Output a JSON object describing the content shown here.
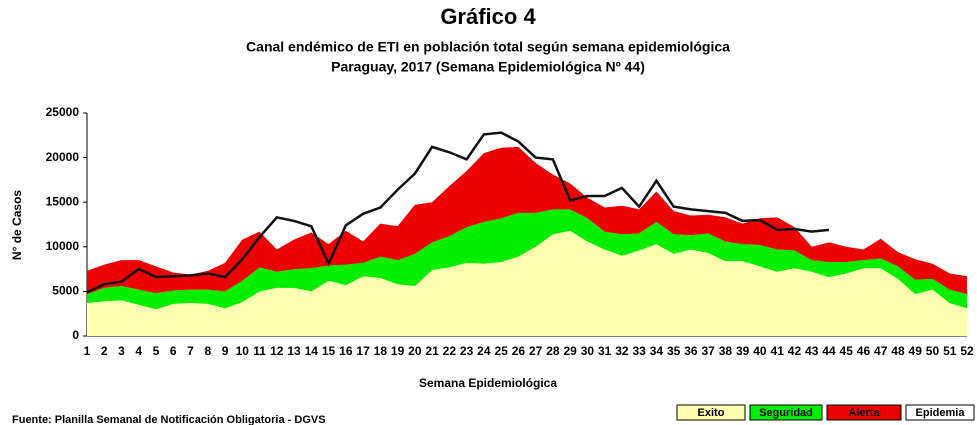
{
  "chart_data": {
    "type": "stacked-area",
    "title": "Gráfico 4",
    "subtitle": [
      "Canal endémico de ETI en población total según semana epidemiológica",
      "Paraguay, 2017 (Semana Epidemiológica Nº 44)"
    ],
    "x_label": "Semana Epidemiológica",
    "y_label": "N° de Casos",
    "source": "Fuente: Planilla Semanal de Notificación Obligatoria - DGVS",
    "categories": [
      1,
      2,
      3,
      4,
      5,
      6,
      7,
      8,
      9,
      10,
      11,
      12,
      13,
      14,
      15,
      16,
      17,
      18,
      19,
      20,
      21,
      22,
      23,
      24,
      25,
      26,
      27,
      28,
      29,
      30,
      31,
      32,
      33,
      34,
      35,
      36,
      37,
      38,
      39,
      40,
      41,
      42,
      43,
      44,
      45,
      46,
      47,
      48,
      49,
      50,
      51,
      52
    ],
    "ylim": [
      0,
      25000
    ],
    "yticks": [
      0,
      5000,
      10000,
      15000,
      20000,
      25000
    ],
    "grid": false,
    "series": [
      {
        "name": "Exito",
        "color": "#ffffb0",
        "values": [
          3700,
          3900,
          4000,
          3500,
          3000,
          3600,
          3700,
          3600,
          3100,
          3800,
          5000,
          5400,
          5400,
          5000,
          6200,
          5700,
          6700,
          6500,
          5800,
          5600,
          7400,
          7700,
          8200,
          8100,
          8300,
          8900,
          10000,
          11400,
          11800,
          10600,
          9700,
          9000,
          9600,
          10300,
          9200,
          9700,
          9300,
          8400,
          8400,
          7800,
          7200,
          7600,
          7200,
          6600,
          7000,
          7600,
          7600,
          6400,
          4700,
          5200,
          3700,
          3100
        ]
      },
      {
        "name": "Seguridad",
        "color": "#00ee00",
        "values": [
          1000,
          1500,
          1600,
          1700,
          1800,
          1500,
          1500,
          1600,
          1900,
          2400,
          2700,
          1800,
          2100,
          2600,
          1700,
          2300,
          1500,
          2400,
          2700,
          3600,
          3100,
          3500,
          4000,
          4700,
          4900,
          4900,
          3800,
          2800,
          2400,
          2600,
          2000,
          2400,
          1900,
          2500,
          2200,
          1600,
          2200,
          2200,
          1900,
          2400,
          2500,
          2000,
          1300,
          1700,
          1300,
          900,
          1100,
          1400,
          1600,
          1200,
          1500,
          1600
        ]
      },
      {
        "name": "Alerta",
        "color": "#ee0000",
        "values": [
          2600,
          2600,
          2900,
          3300,
          3000,
          2000,
          1700,
          2100,
          3200,
          4600,
          4000,
          2500,
          3300,
          4000,
          2400,
          3800,
          2400,
          3700,
          3800,
          5500,
          4500,
          5600,
          6300,
          7700,
          7900,
          7400,
          5600,
          3900,
          2900,
          2300,
          2700,
          3200,
          2700,
          3400,
          2600,
          2200,
          2100,
          2700,
          2300,
          3000,
          3600,
          2600,
          1500,
          2200,
          1700,
          1200,
          2200,
          1600,
          2300,
          1700,
          1800,
          2000
        ]
      }
    ],
    "extra_legend": {
      "name": "Epidemia",
      "color": "#ffffff"
    },
    "line": {
      "color": "#111111",
      "values": [
        4900,
        5800,
        6100,
        7500,
        6600,
        6700,
        6800,
        7000,
        6600,
        8600,
        11100,
        13300,
        12900,
        12300,
        8100,
        12400,
        13700,
        14400,
        16400,
        18200,
        21200,
        20600,
        19800,
        22600,
        22800,
        21800,
        20000,
        19800,
        15200,
        15700,
        15700,
        16600,
        14500,
        17400,
        14500,
        14200,
        14000,
        13800,
        12900,
        13000,
        11900,
        12000,
        11700,
        11900,
        null,
        null,
        null,
        null,
        null,
        null,
        null,
        null
      ]
    }
  }
}
